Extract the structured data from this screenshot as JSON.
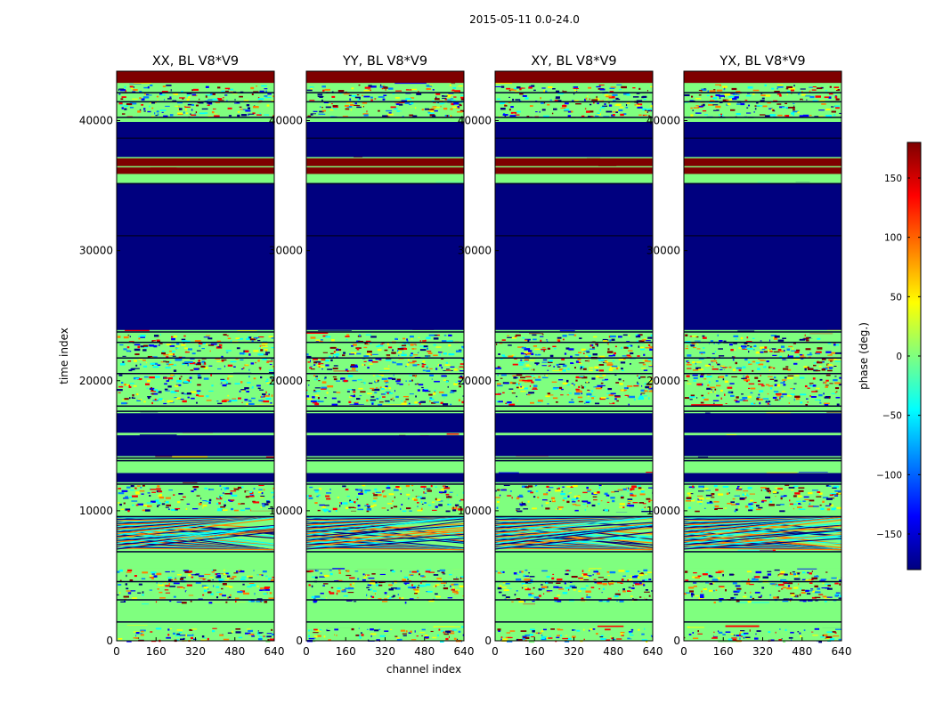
{
  "figure": {
    "suptitle": "2015-05-11 0.0-24.0"
  },
  "chart_data": {
    "type": "heatmap",
    "xlabel": "channel index",
    "ylabel": "time index",
    "xlim": [
      0,
      640
    ],
    "ylim": [
      0,
      43800
    ],
    "x_ticks": [
      0,
      160,
      320,
      480,
      640
    ],
    "x_tick_labels": [
      "0",
      "160",
      "320",
      "480",
      "640"
    ],
    "y_ticks": [
      0,
      10000,
      20000,
      30000,
      40000
    ],
    "y_tick_labels": [
      "0",
      "10000",
      "20000",
      "30000",
      "40000"
    ],
    "panels": [
      {
        "title": "XX, BL V8*V9"
      },
      {
        "title": "YY, BL V8*V9"
      },
      {
        "title": "XY, BL V8*V9"
      },
      {
        "title": "YX, BL V8*V9"
      }
    ],
    "colorbar": {
      "label": "phase (deg.)",
      "range": [
        -180,
        180
      ],
      "ticks": [
        150,
        100,
        50,
        0,
        -50,
        -100,
        -150
      ],
      "tick_labels": [
        "150",
        "100",
        "50",
        "0",
        "−50",
        "−100",
        "−150"
      ],
      "colormap": [
        "#00007f",
        "#0000ff",
        "#007fff",
        "#00ffff",
        "#7fff7f",
        "#ffff00",
        "#ff7f00",
        "#ff0000",
        "#7f0000"
      ]
    },
    "bands": [
      {
        "t0": 42900,
        "t1": 43800,
        "kind": "flag"
      },
      {
        "t0": 36500,
        "t1": 37100,
        "kind": "flag"
      },
      {
        "t0": 35900,
        "t1": 36400,
        "kind": "flag"
      },
      {
        "t0": 23900,
        "t1": 35200,
        "kind": "blank"
      },
      {
        "t0": 37200,
        "t1": 39900,
        "kind": "blank"
      },
      {
        "t0": 16000,
        "t1": 17500,
        "kind": "blank"
      },
      {
        "t0": 14200,
        "t1": 15800,
        "kind": "blank"
      },
      {
        "t0": 12200,
        "t1": 12900,
        "kind": "blank"
      },
      {
        "t0": 16900,
        "t1": 17400,
        "kind": "blank"
      },
      {
        "t0": 7000,
        "t1": 9500,
        "kind": "fringe"
      },
      {
        "t0": 10000,
        "t1": 12000,
        "kind": "noise"
      },
      {
        "t0": 18200,
        "t1": 20500,
        "kind": "noise"
      },
      {
        "t0": 3000,
        "t1": 5500,
        "kind": "noise"
      },
      {
        "t0": 0,
        "t1": 1000,
        "kind": "noise"
      },
      {
        "t0": 40200,
        "t1": 42800,
        "kind": "noise"
      },
      {
        "t0": 20800,
        "t1": 23600,
        "kind": "noise"
      },
      {
        "t0": 1200,
        "t1": 2800,
        "kind": "green"
      },
      {
        "t0": 5600,
        "t1": 6800,
        "kind": "green"
      },
      {
        "t0": 9600,
        "t1": 9900,
        "kind": "green"
      },
      {
        "t0": 13000,
        "t1": 14000,
        "kind": "green"
      },
      {
        "t0": 17600,
        "t1": 18100,
        "kind": "green"
      },
      {
        "t0": 35300,
        "t1": 35800,
        "kind": "green"
      },
      {
        "t0": 39900,
        "t1": 40200,
        "kind": "green"
      }
    ]
  }
}
